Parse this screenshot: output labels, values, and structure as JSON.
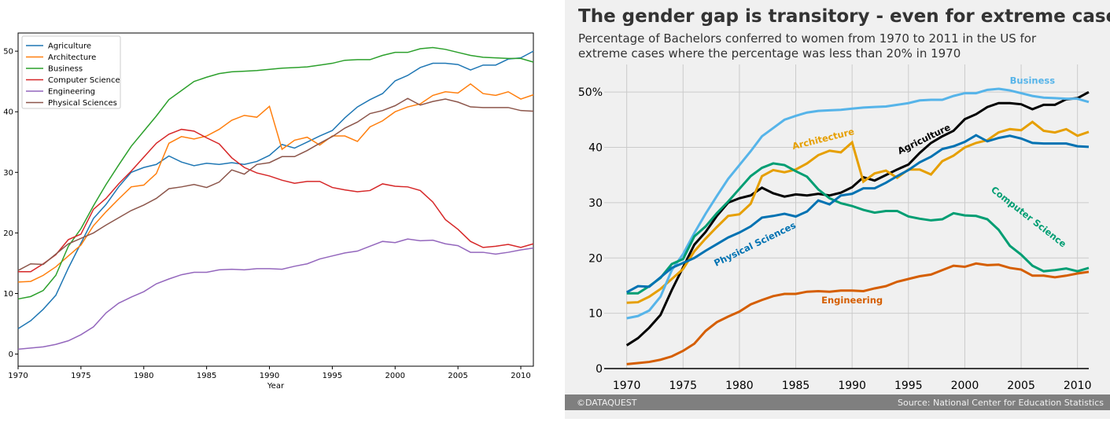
{
  "colors": {
    "left": {
      "Agriculture": "#1f77b4",
      "Architecture": "#ff7f0e",
      "Business": "#2ca02c",
      "Computer Science": "#d62728",
      "Engineering": "#9467bd",
      "Physical Sciences": "#8c564b"
    },
    "right": {
      "Agriculture": "#000000",
      "Architecture": "#E69F00",
      "Business": "#56B4E9",
      "Computer Science": "#009E73",
      "Engineering": "#D55E00",
      "Physical Sciences": "#0072B2"
    }
  },
  "right": {
    "title": "The gender gap is transitory - even for extreme cases",
    "subtitle": "Percentage of Bachelors conferred to women from 1970 to 2011 in the US for extreme cases where the percentage was less than 20% in 1970",
    "footer_left": "©DATAQUEST",
    "footer_right": "Source: National Center for Education Statistics"
  },
  "chart_data": [
    {
      "type": "line",
      "xlabel": "Year",
      "ylabel": "",
      "xlim": [
        1970,
        2011
      ],
      "ylim": [
        -2,
        53
      ],
      "xticks": [
        1970,
        1975,
        1980,
        1985,
        1990,
        1995,
        2000,
        2005,
        2010
      ],
      "yticks": [
        0,
        10,
        20,
        30,
        40,
        50
      ],
      "legend_position": "top-left",
      "x": [
        1970,
        1971,
        1972,
        1973,
        1974,
        1975,
        1976,
        1977,
        1978,
        1979,
        1980,
        1981,
        1982,
        1983,
        1984,
        1985,
        1986,
        1987,
        1988,
        1989,
        1990,
        1991,
        1992,
        1993,
        1994,
        1995,
        1996,
        1997,
        1998,
        1999,
        2000,
        2001,
        2002,
        2003,
        2004,
        2005,
        2006,
        2007,
        2008,
        2009,
        2010,
        2011
      ],
      "series": [
        {
          "name": "Agriculture",
          "values": [
            4.2,
            5.5,
            7.4,
            9.7,
            14.2,
            18.3,
            22.4,
            24.7,
            27.6,
            30.0,
            30.8,
            31.3,
            32.7,
            31.7,
            31.1,
            31.5,
            31.3,
            31.6,
            31.3,
            31.8,
            32.8,
            34.6,
            34.0,
            35.0,
            36.0,
            36.9,
            39.0,
            40.8,
            42.0,
            43.0,
            45.1,
            46.0,
            47.3,
            48.0,
            48.0,
            47.8,
            46.9,
            47.7,
            47.7,
            48.7,
            48.9,
            50.0
          ]
        },
        {
          "name": "Architecture",
          "values": [
            11.9,
            12.0,
            13.0,
            14.4,
            16.2,
            18.0,
            21.2,
            23.5,
            25.6,
            27.6,
            27.9,
            29.8,
            34.8,
            35.9,
            35.5,
            36.0,
            37.1,
            38.6,
            39.4,
            39.1,
            40.9,
            33.8,
            35.3,
            35.8,
            34.5,
            36.0,
            36.0,
            35.1,
            37.5,
            38.5,
            40.0,
            40.8,
            41.3,
            42.7,
            43.3,
            43.1,
            44.6,
            43.0,
            42.7,
            43.3,
            42.1,
            42.8
          ]
        },
        {
          "name": "Business",
          "values": [
            9.1,
            9.5,
            10.5,
            13.0,
            17.8,
            20.7,
            24.5,
            28.0,
            31.2,
            34.3,
            36.8,
            39.3,
            42.0,
            43.5,
            45.0,
            45.7,
            46.3,
            46.6,
            46.7,
            46.8,
            47.0,
            47.2,
            47.3,
            47.4,
            47.7,
            48.0,
            48.5,
            48.6,
            48.6,
            49.3,
            49.8,
            49.8,
            50.4,
            50.6,
            50.3,
            49.8,
            49.3,
            49.0,
            48.9,
            48.8,
            48.8,
            48.2
          ]
        },
        {
          "name": "Computer Science",
          "values": [
            13.6,
            13.6,
            14.9,
            16.4,
            18.9,
            19.8,
            23.9,
            25.7,
            28.1,
            30.2,
            32.5,
            34.8,
            36.3,
            37.1,
            36.8,
            35.7,
            34.7,
            32.4,
            30.8,
            29.9,
            29.4,
            28.7,
            28.2,
            28.5,
            28.5,
            27.5,
            27.1,
            26.8,
            27.0,
            28.1,
            27.7,
            27.6,
            27.0,
            25.1,
            22.2,
            20.6,
            18.6,
            17.6,
            17.8,
            18.1,
            17.6,
            18.2
          ]
        },
        {
          "name": "Engineering",
          "values": [
            0.8,
            1.0,
            1.2,
            1.6,
            2.2,
            3.2,
            4.5,
            6.8,
            8.4,
            9.4,
            10.3,
            11.6,
            12.4,
            13.1,
            13.5,
            13.5,
            13.9,
            14.0,
            13.9,
            14.1,
            14.1,
            14.0,
            14.5,
            14.9,
            15.7,
            16.2,
            16.7,
            17.0,
            17.8,
            18.6,
            18.4,
            19.0,
            18.7,
            18.8,
            18.2,
            17.9,
            16.8,
            16.8,
            16.5,
            16.8,
            17.2,
            17.5
          ]
        },
        {
          "name": "Physical Sciences",
          "values": [
            13.8,
            14.9,
            14.8,
            16.5,
            18.2,
            19.1,
            20.0,
            21.3,
            22.5,
            23.7,
            24.6,
            25.7,
            27.3,
            27.6,
            28.0,
            27.5,
            28.4,
            30.4,
            29.7,
            31.3,
            31.6,
            32.6,
            32.6,
            33.6,
            34.8,
            35.9,
            37.3,
            38.3,
            39.7,
            40.2,
            41.0,
            42.2,
            41.1,
            41.7,
            42.1,
            41.6,
            40.8,
            40.7,
            40.7,
            40.7,
            40.2,
            40.1
          ]
        }
      ]
    },
    {
      "type": "line",
      "title": "The gender gap is transitory - even for extreme cases",
      "subtitle": "Percentage of Bachelors conferred to women from 1970 to 2011 in the US for extreme cases where the percentage was less than 20% in 1970",
      "xlim": [
        1968,
        2011
      ],
      "ylim": [
        0,
        55
      ],
      "xticks": [
        1970,
        1975,
        1980,
        1985,
        1990,
        1995,
        2000,
        2005,
        2010
      ],
      "yticks": [
        0,
        10,
        20,
        30,
        40,
        50
      ],
      "ytick_labels": [
        "0",
        "10",
        "20",
        "30",
        "40",
        "50%"
      ],
      "grid": true,
      "legend_position": "none",
      "annotations": [
        "Business",
        "Architecture",
        "Agriculture",
        "Computer Science",
        "Physical Sciences",
        "Engineering"
      ],
      "series_same_as_left_chart": true
    }
  ]
}
